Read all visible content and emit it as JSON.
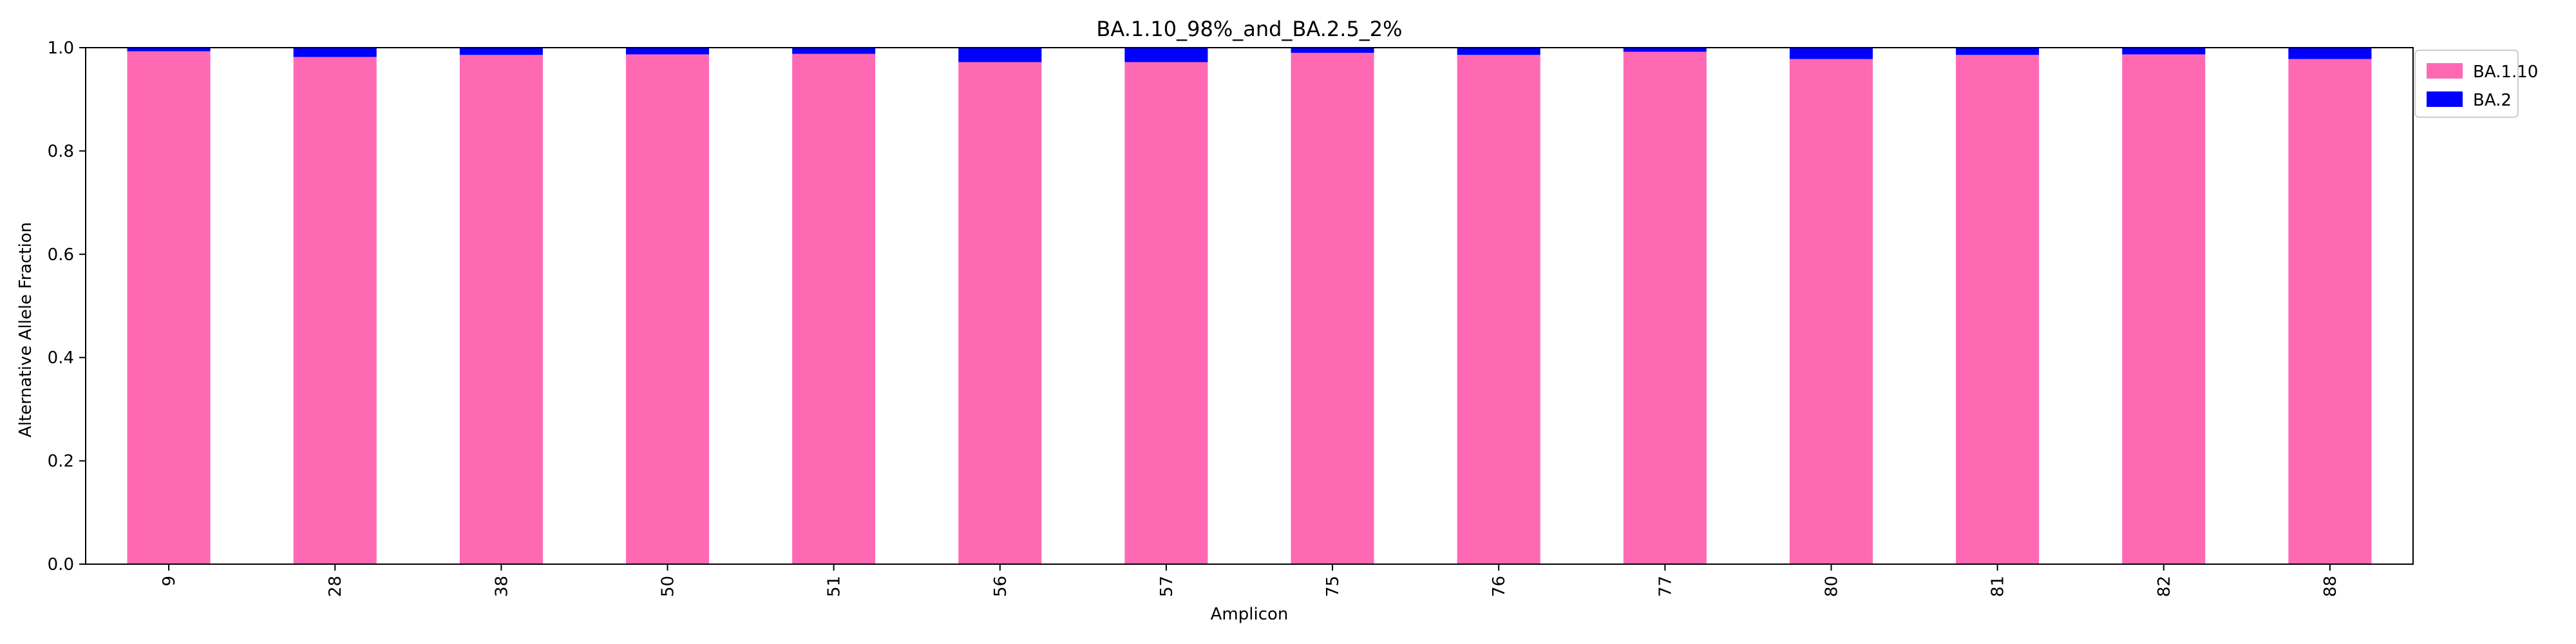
{
  "chart_data": {
    "type": "bar",
    "stacked": true,
    "title": "BA.1.10_98%_and_BA.2.5_2%",
    "xlabel": "Amplicon",
    "ylabel": "Alternative Allele Fraction",
    "ylim": [
      0,
      1
    ],
    "yticks": [
      "0.0",
      "0.2",
      "0.4",
      "0.6",
      "0.8",
      "1.0"
    ],
    "categories": [
      "9",
      "28",
      "38",
      "50",
      "51",
      "56",
      "57",
      "75",
      "76",
      "77",
      "80",
      "81",
      "82",
      "88"
    ],
    "series": [
      {
        "name": "BA.1.10",
        "color": "#ff69b4",
        "values": [
          0.993,
          0.982,
          0.986,
          0.987,
          0.988,
          0.972,
          0.972,
          0.99,
          0.986,
          0.992,
          0.978,
          0.986,
          0.987,
          0.978
        ]
      },
      {
        "name": "BA.2",
        "color": "#0000ff",
        "values": [
          0.007,
          0.018,
          0.014,
          0.013,
          0.012,
          0.028,
          0.028,
          0.01,
          0.014,
          0.008,
          0.022,
          0.014,
          0.013,
          0.022
        ]
      }
    ],
    "grid": false,
    "legend_position": "top-right, outside plot area"
  }
}
